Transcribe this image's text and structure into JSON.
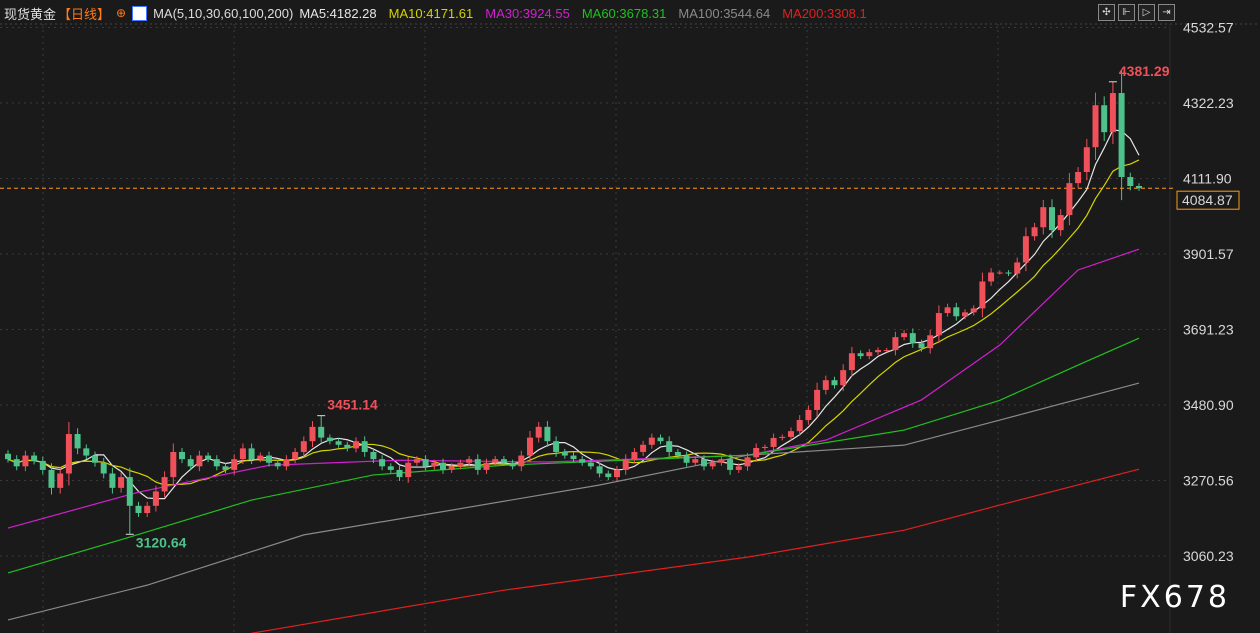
{
  "header": {
    "symbol": "现货黄金",
    "period": "【日线】",
    "target_icon": "⊕",
    "ma_label": "MA(5,10,30,60,100,200)",
    "ma_values": [
      {
        "text": "MA5:4182.28",
        "color": "#e6e6e6"
      },
      {
        "text": "MA10:4171.61",
        "color": "#d4d400"
      },
      {
        "text": "MA30:3924.55",
        "color": "#d020d0"
      },
      {
        "text": "MA60:3678.31",
        "color": "#20c020"
      },
      {
        "text": "MA100:3544.64",
        "color": "#8a8a8a"
      },
      {
        "text": "MA200:3308.1",
        "color": "#e02020"
      }
    ]
  },
  "toolbar": {
    "icons": [
      "crosshair-icon",
      "zoom-range-icon",
      "play-icon",
      "goto-latest-icon"
    ],
    "glyphs": [
      "✣",
      "⊩",
      "▷",
      "⇥"
    ]
  },
  "watermark": "FX678",
  "chart_data": {
    "type": "candlestick",
    "y_ticks": [
      "4532.57",
      "4322.23",
      "4111.90",
      "3901.57",
      "3691.23",
      "3480.90",
      "3270.56",
      "3060.23"
    ],
    "ylim": [
      2860,
      4560
    ],
    "current_price": "4084.87",
    "colors": {
      "up": "#f0505a",
      "down": "#4ec28a",
      "current": "#ff9a1a"
    },
    "annotations": [
      {
        "text": "4381.29",
        "type": "high",
        "index": 127,
        "color": "#f0505a"
      },
      {
        "text": "3451.14",
        "type": "high",
        "index": 36,
        "color": "#f0505a"
      },
      {
        "text": "3120.64",
        "type": "low",
        "index": 14,
        "color": "#4ec28a"
      }
    ],
    "closes": [
      3330,
      3310,
      3340,
      3325,
      3300,
      3250,
      3290,
      3400,
      3360,
      3340,
      3320,
      3290,
      3250,
      3280,
      3200,
      3180,
      3200,
      3240,
      3280,
      3350,
      3330,
      3310,
      3340,
      3330,
      3310,
      3300,
      3330,
      3360,
      3330,
      3340,
      3320,
      3310,
      3330,
      3350,
      3380,
      3420,
      3390,
      3380,
      3370,
      3360,
      3380,
      3350,
      3330,
      3310,
      3300,
      3280,
      3320,
      3330,
      3310,
      3320,
      3300,
      3310,
      3320,
      3330,
      3300,
      3320,
      3330,
      3320,
      3310,
      3340,
      3390,
      3420,
      3380,
      3350,
      3340,
      3330,
      3320,
      3310,
      3290,
      3280,
      3300,
      3330,
      3350,
      3370,
      3390,
      3380,
      3350,
      3340,
      3320,
      3330,
      3310,
      3320,
      3330,
      3300,
      3310,
      3335,
      3361,
      3364,
      3389,
      3392,
      3408,
      3439,
      3467,
      3523,
      3550,
      3536,
      3578,
      3625,
      3617,
      3628,
      3634,
      3634,
      3670,
      3681,
      3653,
      3639,
      3675,
      3737,
      3753,
      3728,
      3739,
      3750,
      3825,
      3850,
      3850,
      3847,
      3878,
      3951,
      3976,
      4032,
      3968,
      4010,
      4099,
      4130,
      4199,
      4316,
      4241,
      4350,
      4116,
      4091,
      4085
    ],
    "ma_series": [
      {
        "name": "MA5",
        "color": "#e6e6e6",
        "computed_period": 5
      },
      {
        "name": "MA10",
        "color": "#d4d400",
        "computed_period": 10
      },
      {
        "name": "MA30",
        "color": "#d020d0",
        "points": [
          [
            0,
            3138
          ],
          [
            15,
            3238
          ],
          [
            30,
            3313
          ],
          [
            45,
            3327
          ],
          [
            62,
            3322
          ],
          [
            85,
            3341
          ],
          [
            94,
            3383
          ],
          [
            105,
            3495
          ],
          [
            114,
            3648
          ],
          [
            123,
            3857
          ],
          [
            130,
            3915
          ]
        ]
      },
      {
        "name": "MA60",
        "color": "#20c020",
        "points": [
          [
            0,
            3013
          ],
          [
            14,
            3113
          ],
          [
            28,
            3216
          ],
          [
            42,
            3286
          ],
          [
            57,
            3313
          ],
          [
            85,
            3341
          ],
          [
            103,
            3411
          ],
          [
            114,
            3494
          ],
          [
            123,
            3592
          ],
          [
            130,
            3667
          ]
        ]
      },
      {
        "name": "MA100",
        "color": "#8a8a8a",
        "points": [
          [
            0,
            2882
          ],
          [
            16,
            2979
          ],
          [
            34,
            3119
          ],
          [
            51,
            3188
          ],
          [
            68,
            3258
          ],
          [
            85,
            3341
          ],
          [
            103,
            3369
          ],
          [
            114,
            3439
          ],
          [
            130,
            3542
          ]
        ]
      },
      {
        "name": "MA200",
        "color": "#e02020",
        "points": [
          [
            28,
            2845
          ],
          [
            57,
            2965
          ],
          [
            85,
            3057
          ],
          [
            103,
            3132
          ],
          [
            114,
            3202
          ],
          [
            130,
            3302
          ]
        ]
      }
    ]
  }
}
